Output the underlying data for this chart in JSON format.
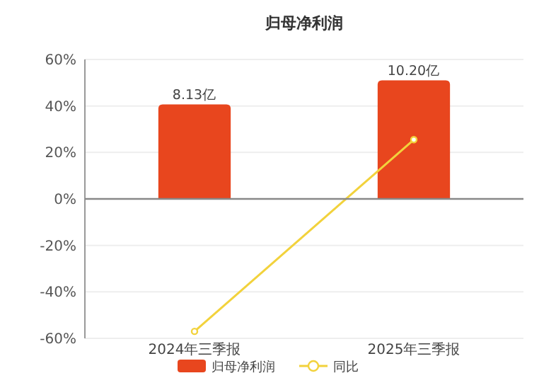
{
  "chart_data": {
    "type": "bar",
    "title": "归母净利润",
    "categories": [
      "2024年三季报",
      "2025年三季报"
    ],
    "series": [
      {
        "name": "归母净利润",
        "axis": "y2",
        "color": "#e8461e",
        "values": [
          8.13,
          10.2
        ],
        "value_labels": [
          "8.13亿",
          "10.20亿"
        ]
      },
      {
        "name": "同比",
        "type": "line",
        "color": "#f2d23c",
        "marker": "circle",
        "values": [
          -57,
          25.5
        ]
      }
    ],
    "ylim": [
      -60,
      60
    ],
    "yticks": [
      {
        "value": -60,
        "label": "-60%"
      },
      {
        "value": -40,
        "label": "-40%"
      },
      {
        "value": -20,
        "label": "-20%"
      },
      {
        "value": 0,
        "label": "0%"
      },
      {
        "value": 20,
        "label": "20%"
      },
      {
        "value": 40,
        "label": "40%"
      },
      {
        "value": 60,
        "label": "60%"
      }
    ],
    "y2lim": [
      -12,
      12
    ],
    "grid": "y",
    "legend": "bottom"
  }
}
